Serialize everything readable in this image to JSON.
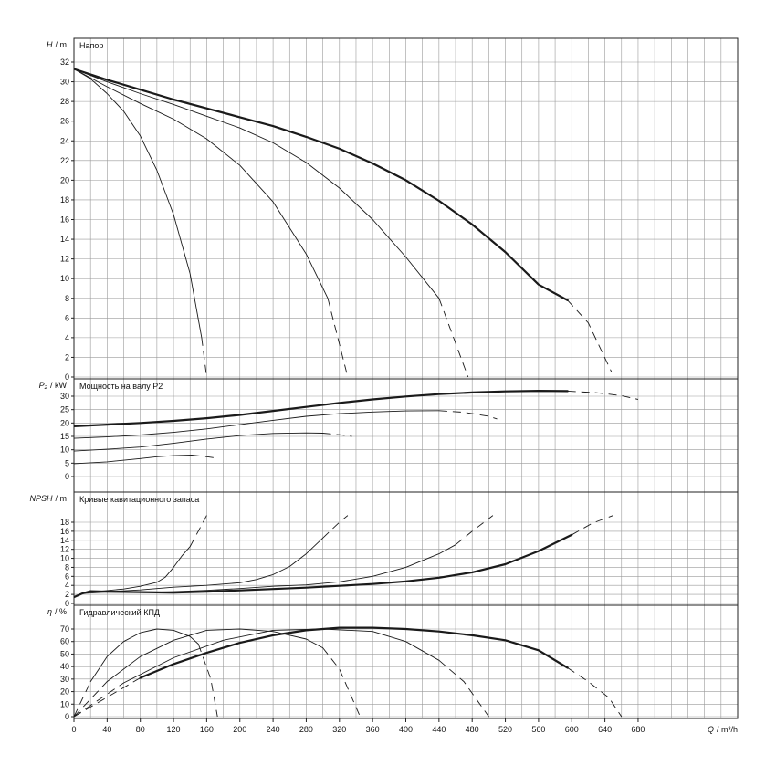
{
  "x_axis": {
    "label_q": "Q",
    "label_unit": "/ m³/h",
    "min": 0,
    "max": 800,
    "ticks": [
      0,
      40,
      80,
      120,
      160,
      200,
      240,
      280,
      320,
      360,
      400,
      440,
      480,
      520,
      560,
      600,
      640,
      680
    ]
  },
  "chart_data": [
    {
      "type": "line",
      "id": "head",
      "title": "Напор",
      "ylabel": "H",
      "yunit": "/ m",
      "ylim": [
        0,
        34
      ],
      "yticks": [
        0,
        2,
        4,
        6,
        8,
        10,
        12,
        14,
        16,
        18,
        20,
        22,
        24,
        26,
        28,
        30,
        32
      ],
      "grid": true,
      "series": [
        {
          "solid": [
            [
              0,
              31.3
            ],
            [
              20,
              30.3
            ],
            [
              40,
              28.8
            ],
            [
              60,
              27
            ],
            [
              80,
              24.5
            ],
            [
              100,
              21
            ],
            [
              120,
              16.5
            ],
            [
              140,
              10.5
            ],
            [
              154,
              4
            ]
          ],
          "dashed": [
            [
              154,
              4
            ],
            [
              160,
              0
            ]
          ]
        },
        {
          "solid": [
            [
              0,
              31.3
            ],
            [
              40,
              29.5
            ],
            [
              80,
              27.8
            ],
            [
              120,
              26.2
            ],
            [
              160,
              24.2
            ],
            [
              200,
              21.5
            ],
            [
              240,
              17.8
            ],
            [
              280,
              12.5
            ],
            [
              306,
              8
            ]
          ],
          "dashed": [
            [
              306,
              8
            ],
            [
              330,
              0
            ]
          ]
        },
        {
          "solid": [
            [
              0,
              31.3
            ],
            [
              40,
              30
            ],
            [
              80,
              28.8
            ],
            [
              120,
              27.7
            ],
            [
              160,
              26.5
            ],
            [
              200,
              25.3
            ],
            [
              240,
              23.8
            ],
            [
              280,
              21.8
            ],
            [
              320,
              19.2
            ],
            [
              360,
              16
            ],
            [
              400,
              12.2
            ],
            [
              440,
              8
            ]
          ],
          "dashed": [
            [
              440,
              8
            ],
            [
              475,
              0
            ]
          ]
        },
        {
          "solid": [
            [
              0,
              31.3
            ],
            [
              40,
              30.2
            ],
            [
              80,
              29.2
            ],
            [
              120,
              28.2
            ],
            [
              160,
              27.3
            ],
            [
              200,
              26.4
            ],
            [
              240,
              25.5
            ],
            [
              280,
              24.4
            ],
            [
              320,
              23.2
            ],
            [
              360,
              21.7
            ],
            [
              400,
              20
            ],
            [
              440,
              17.9
            ],
            [
              480,
              15.5
            ],
            [
              520,
              12.7
            ],
            [
              560,
              9.4
            ],
            [
              595,
              7.8
            ]
          ],
          "dashed": [
            [
              595,
              7.8
            ],
            [
              620,
              5.5
            ],
            [
              648,
              0.5
            ]
          ]
        }
      ]
    },
    {
      "type": "line",
      "id": "power",
      "title": "Мощность на валу P2",
      "ylabel": "P₂",
      "yunit": "/ kW",
      "ylim": [
        0,
        35
      ],
      "yticks": [
        0,
        5,
        10,
        15,
        20,
        25,
        30
      ],
      "grid": true,
      "series": [
        {
          "solid": [
            [
              0,
              4.8
            ],
            [
              40,
              5.5
            ],
            [
              80,
              6.7
            ],
            [
              100,
              7.4
            ],
            [
              120,
              7.8
            ],
            [
              142,
              8
            ]
          ],
          "dashed": [
            [
              142,
              8
            ],
            [
              158,
              7.5
            ],
            [
              170,
              7
            ]
          ]
        },
        {
          "solid": [
            [
              0,
              9.5
            ],
            [
              40,
              10.2
            ],
            [
              80,
              11
            ],
            [
              120,
              12.4
            ],
            [
              160,
              14
            ],
            [
              200,
              15.3
            ],
            [
              240,
              16.1
            ],
            [
              280,
              16.3
            ],
            [
              300,
              16.2
            ]
          ],
          "dashed": [
            [
              300,
              16.2
            ],
            [
              320,
              15.6
            ],
            [
              335,
              15
            ]
          ]
        },
        {
          "solid": [
            [
              0,
              14.3
            ],
            [
              40,
              14.8
            ],
            [
              80,
              15.5
            ],
            [
              120,
              16.5
            ],
            [
              160,
              17.8
            ],
            [
              200,
              19.4
            ],
            [
              240,
              21
            ],
            [
              280,
              22.5
            ],
            [
              320,
              23.5
            ],
            [
              360,
              24.1
            ],
            [
              400,
              24.5
            ],
            [
              440,
              24.6
            ]
          ],
          "dashed": [
            [
              440,
              24.6
            ],
            [
              470,
              24
            ],
            [
              500,
              22.5
            ],
            [
              510,
              21.5
            ]
          ]
        },
        {
          "solid": [
            [
              0,
              18.8
            ],
            [
              40,
              19.4
            ],
            [
              80,
              20
            ],
            [
              120,
              20.8
            ],
            [
              160,
              21.8
            ],
            [
              200,
              23
            ],
            [
              240,
              24.5
            ],
            [
              280,
              26
            ],
            [
              320,
              27.5
            ],
            [
              360,
              28.8
            ],
            [
              400,
              29.9
            ],
            [
              440,
              30.8
            ],
            [
              480,
              31.4
            ],
            [
              520,
              31.8
            ],
            [
              560,
              32
            ],
            [
              595,
              31.9
            ]
          ],
          "dashed": [
            [
              595,
              31.9
            ],
            [
              630,
              31.3
            ],
            [
              660,
              30.2
            ],
            [
              680,
              28.8
            ]
          ]
        }
      ]
    },
    {
      "type": "line",
      "id": "npsh",
      "title": "Кривые кавитационного запаса",
      "ylabel": "NPSH",
      "yunit": "/ m",
      "ylim": [
        0,
        20
      ],
      "yticks": [
        0,
        2,
        4,
        6,
        8,
        10,
        12,
        14,
        16,
        18
      ],
      "grid": true,
      "series": [
        {
          "solid": [
            [
              0,
              1.4
            ],
            [
              10,
              2.2
            ],
            [
              20,
              2.5
            ],
            [
              60,
              3.2
            ],
            [
              80,
              3.8
            ],
            [
              100,
              4.7
            ],
            [
              110,
              5.8
            ],
            [
              120,
              8
            ],
            [
              130,
              10.5
            ],
            [
              140,
              12.6
            ]
          ],
          "dashed": [
            [
              140,
              12.6
            ],
            [
              160,
              19.5
            ]
          ]
        },
        {
          "solid": [
            [
              0,
              1.4
            ],
            [
              10,
              2.2
            ],
            [
              20,
              2.5
            ],
            [
              40,
              2.6
            ],
            [
              80,
              3
            ],
            [
              120,
              3.6
            ],
            [
              160,
              4
            ],
            [
              200,
              4.6
            ],
            [
              220,
              5.3
            ],
            [
              240,
              6.4
            ],
            [
              260,
              8.2
            ],
            [
              280,
              11
            ],
            [
              300,
              14.5
            ]
          ],
          "dashed": [
            [
              300,
              14.5
            ],
            [
              320,
              18
            ],
            [
              330,
              19.5
            ]
          ]
        },
        {
          "solid": [
            [
              0,
              1.4
            ],
            [
              10,
              2.2
            ],
            [
              40,
              2.5
            ],
            [
              80,
              2.4
            ],
            [
              120,
              2.6
            ],
            [
              160,
              2.9
            ],
            [
              200,
              3.3
            ],
            [
              240,
              3.8
            ],
            [
              280,
              4.1
            ],
            [
              320,
              4.8
            ],
            [
              360,
              6
            ],
            [
              400,
              8
            ],
            [
              440,
              11
            ],
            [
              460,
              13
            ]
          ],
          "dashed": [
            [
              460,
              13
            ],
            [
              480,
              16
            ],
            [
              505,
              19.5
            ]
          ]
        },
        {
          "solid": [
            [
              0,
              1.4
            ],
            [
              10,
              2.2
            ],
            [
              20,
              2.7
            ],
            [
              40,
              2.6
            ],
            [
              80,
              2.5
            ],
            [
              120,
              2.4
            ],
            [
              160,
              2.6
            ],
            [
              200,
              2.9
            ],
            [
              240,
              3.2
            ],
            [
              280,
              3.5
            ],
            [
              320,
              3.9
            ],
            [
              360,
              4.3
            ],
            [
              400,
              4.9
            ],
            [
              440,
              5.7
            ],
            [
              480,
              6.9
            ],
            [
              520,
              8.7
            ],
            [
              560,
              11.6
            ],
            [
              600,
              15.2
            ]
          ],
          "dashed": [
            [
              600,
              15.2
            ],
            [
              625,
              17.8
            ],
            [
              650,
              19.5
            ]
          ]
        }
      ]
    },
    {
      "type": "line",
      "id": "efficiency",
      "title": "Гидравлический КПД",
      "ylabel": "η",
      "yunit": "/ %",
      "ylim": [
        0,
        80
      ],
      "yticks": [
        0,
        10,
        20,
        30,
        40,
        50,
        60,
        70
      ],
      "grid": true,
      "series": [
        {
          "solid": [
            [
              20,
              28
            ],
            [
              40,
              48
            ],
            [
              60,
              60
            ],
            [
              80,
              67
            ],
            [
              100,
              70
            ],
            [
              120,
              69
            ],
            [
              140,
              64
            ],
            [
              150,
              58
            ]
          ],
          "dashed": [
            [
              0,
              0
            ],
            [
              20,
              28
            ]
          ],
          "dashed_end": [
            [
              150,
              58
            ],
            [
              165,
              30
            ],
            [
              173,
              0
            ]
          ]
        },
        {
          "solid": [
            [
              40,
              28
            ],
            [
              80,
              48
            ],
            [
              120,
              61
            ],
            [
              160,
              69
            ],
            [
              200,
              70
            ],
            [
              240,
              68
            ],
            [
              280,
              62
            ],
            [
              300,
              55
            ]
          ],
          "dashed": [
            [
              0,
              0
            ],
            [
              40,
              28
            ]
          ],
          "dashed_end": [
            [
              300,
              55
            ],
            [
              320,
              38
            ],
            [
              345,
              0
            ]
          ]
        },
        {
          "solid": [
            [
              60,
              27
            ],
            [
              120,
              47
            ],
            [
              180,
              61
            ],
            [
              240,
              69
            ],
            [
              300,
              70
            ],
            [
              360,
              68
            ],
            [
              400,
              60
            ],
            [
              440,
              45
            ]
          ],
          "dashed": [
            [
              0,
              0
            ],
            [
              60,
              27
            ]
          ],
          "dashed_end": [
            [
              440,
              45
            ],
            [
              470,
              28
            ],
            [
              500,
              0
            ]
          ]
        },
        {
          "solid": [
            [
              80,
              31
            ],
            [
              120,
              42
            ],
            [
              160,
              51
            ],
            [
              200,
              59
            ],
            [
              240,
              65
            ],
            [
              280,
              69
            ],
            [
              320,
              71
            ],
            [
              360,
              71
            ],
            [
              400,
              70
            ],
            [
              440,
              68
            ],
            [
              480,
              65
            ],
            [
              520,
              61
            ],
            [
              560,
              53
            ],
            [
              595,
              39
            ]
          ],
          "dashed": [
            [
              0,
              0
            ],
            [
              80,
              31
            ]
          ],
          "dashed_end": [
            [
              595,
              39
            ],
            [
              620,
              28
            ],
            [
              645,
              15
            ],
            [
              660,
              0
            ]
          ]
        }
      ]
    }
  ],
  "series_weights": [
    0.9,
    0.9,
    0.9,
    2.2
  ]
}
